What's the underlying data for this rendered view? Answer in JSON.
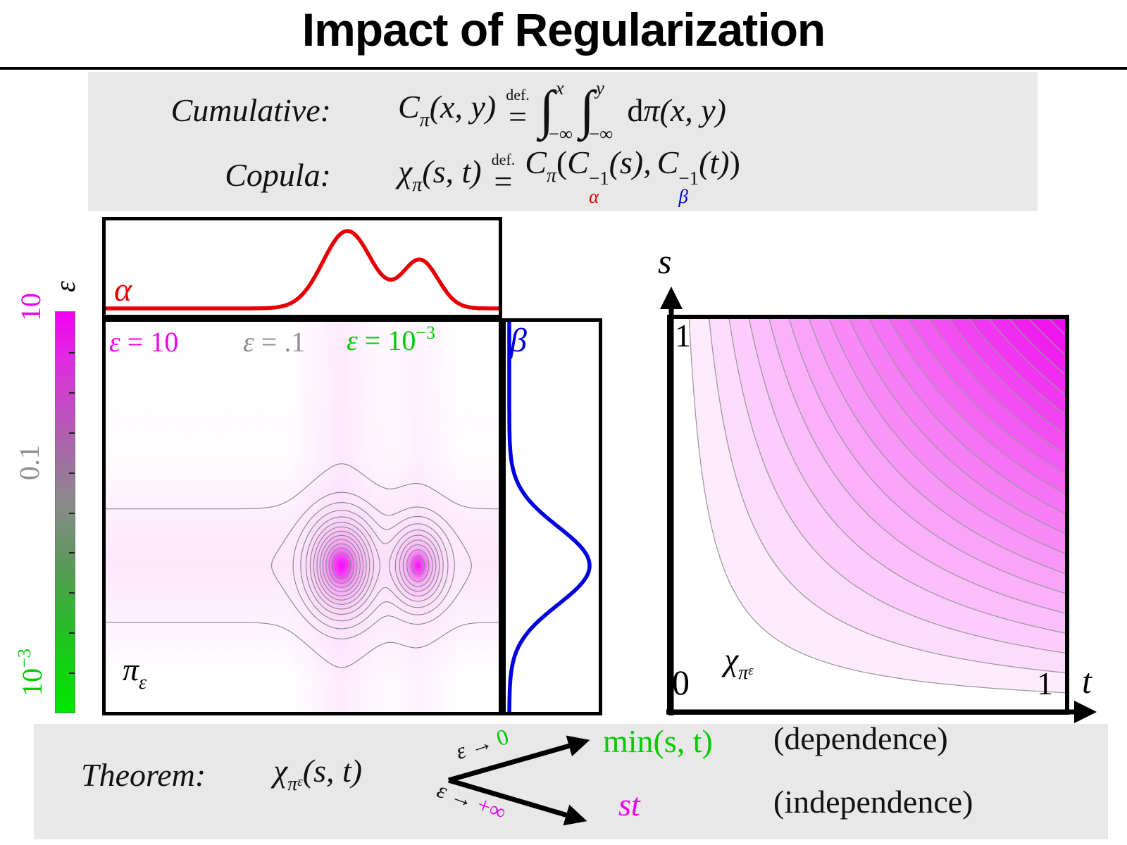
{
  "title": "Impact of Regularization",
  "colors": {
    "magenta": "#ee00ee",
    "green": "#00cc00",
    "gray_label": "#8f8f8f",
    "red": "#e60000",
    "blue": "#0000dd",
    "contour_gray": "#8a8a8a",
    "panel_bg": "#e8e8e8",
    "black": "#000000"
  },
  "definitions": {
    "cumulative": {
      "label": "Cumulative:",
      "lhs_sym": "C",
      "lhs_sub": "π",
      "lhs_args": "(x, y)",
      "def_word": "def.",
      "eq": "=",
      "int_sign": "∫",
      "int1_sup": "x",
      "int1_sub": "−∞",
      "int2_sup": "y",
      "int2_sub": "−∞",
      "integrand_d": "d",
      "integrand": "π(x, y)"
    },
    "copula": {
      "label": "Copula:",
      "lhs_sym": "χ",
      "lhs_sub": "π",
      "lhs_args": "(s, t)",
      "def_word": "def.",
      "eq": "=",
      "rhs_sym": "C",
      "rhs_sub": "π",
      "open": "(",
      "c1_sym": "C",
      "c1_sup": "−1",
      "c1_sub": "α",
      "c1_args": "(s),",
      "c2_sym": "C",
      "c2_sup": "−1",
      "c2_sub": "β",
      "c2_args": "(t)",
      "close": ")"
    }
  },
  "colorbar": {
    "title": "ε",
    "scale": "log",
    "tick_top": "10",
    "tick_mid": "0.1",
    "tick_bottom_base": "10",
    "tick_bottom_sup": "−3"
  },
  "joint_panel": {
    "alpha_label": "α",
    "beta_label": "β",
    "density_label_base": "π",
    "density_label_sub": "ε",
    "eps_labels": {
      "magenta": {
        "sym": "ε",
        "val": " = 10"
      },
      "gray": {
        "sym": "ε",
        "val": " = .1"
      },
      "green": {
        "sym": "ε",
        "val": " = 10",
        "sup": "−3"
      }
    }
  },
  "copula_panel": {
    "s_axis": "s",
    "t_axis": "t",
    "tick_top": "1",
    "tick_origin": "0",
    "tick_right": "1",
    "label_chi": "χ",
    "label_sub": "π",
    "label_subsub": "ε"
  },
  "theorem": {
    "label": "Theorem:",
    "lhs_chi": "χ",
    "lhs_sub": "π",
    "lhs_subsub": "ε",
    "lhs_args": "(s, t)",
    "branch_top": {
      "eps": "ε",
      "arrow": "→",
      "limit": "0"
    },
    "branch_bottom": {
      "eps": "ε",
      "arrow": "→",
      "limit": "+∞"
    },
    "result_top": "min(s, t)",
    "note_top": "(dependence)",
    "result_bottom": "st",
    "note_bottom": "(independence)"
  },
  "chart_data": [
    {
      "id": "alpha_marginal",
      "type": "line",
      "title": "source marginal α (bimodal)",
      "color": "#e60000",
      "domain": [
        0,
        1
      ],
      "orientation": "horizontal",
      "components": [
        {
          "center": 0.615,
          "sigma": 0.062,
          "amp": 1.0
        },
        {
          "center": 0.8,
          "sigma": 0.046,
          "amp": 0.62
        }
      ]
    },
    {
      "id": "beta_marginal",
      "type": "line",
      "title": "target marginal β (unimodal)",
      "color": "#0000dd",
      "domain": [
        0,
        1
      ],
      "orientation": "vertical",
      "components": [
        {
          "center": 0.625,
          "sigma": 0.1,
          "amp": 1.0
        }
      ]
    },
    {
      "id": "joint_density",
      "type": "contour",
      "title": "entropic plan π_ε",
      "contour_color": "#8a8a8a",
      "fill_colormap": [
        "#ffffff",
        "#ee00ee"
      ],
      "x_range": [
        0,
        1
      ],
      "y_range": [
        0,
        1
      ],
      "levels": [
        0.045,
        0.105,
        0.17,
        0.25,
        0.34,
        0.43,
        0.52,
        0.61,
        0.7,
        0.79,
        0.88,
        0.96,
        1.04
      ],
      "blobs": [
        {
          "x": 0.6,
          "y": 0.625,
          "sx": 0.052,
          "sy": 0.075,
          "w": 1.0
        },
        {
          "x": 0.795,
          "y": 0.625,
          "sx": 0.042,
          "sy": 0.062,
          "w": 0.72
        }
      ],
      "band": {
        "y": 0.625,
        "sy": 0.115,
        "w": 0.1
      },
      "x_modulation": {
        "w": 0.035,
        "components": [
          {
            "center": 0.6,
            "sigma": 0.075,
            "amp": 1.0
          },
          {
            "center": 0.795,
            "sigma": 0.055,
            "amp": 0.65
          }
        ]
      }
    },
    {
      "id": "copula",
      "type": "contour",
      "title": "copula χ_{π_ε}",
      "function": "value(s,t) = s·t (independence copula shape)",
      "x_range": [
        0,
        1
      ],
      "y_range": [
        0,
        1
      ],
      "levels": [
        0.05,
        0.1,
        0.15,
        0.2,
        0.25,
        0.3,
        0.35,
        0.4,
        0.45,
        0.5,
        0.55,
        0.6,
        0.65,
        0.7,
        0.75,
        0.8,
        0.85,
        0.9,
        0.95
      ],
      "contour_color": "#999999",
      "fill_colormap": [
        "#ffffff",
        "#ee00ee"
      ]
    }
  ]
}
